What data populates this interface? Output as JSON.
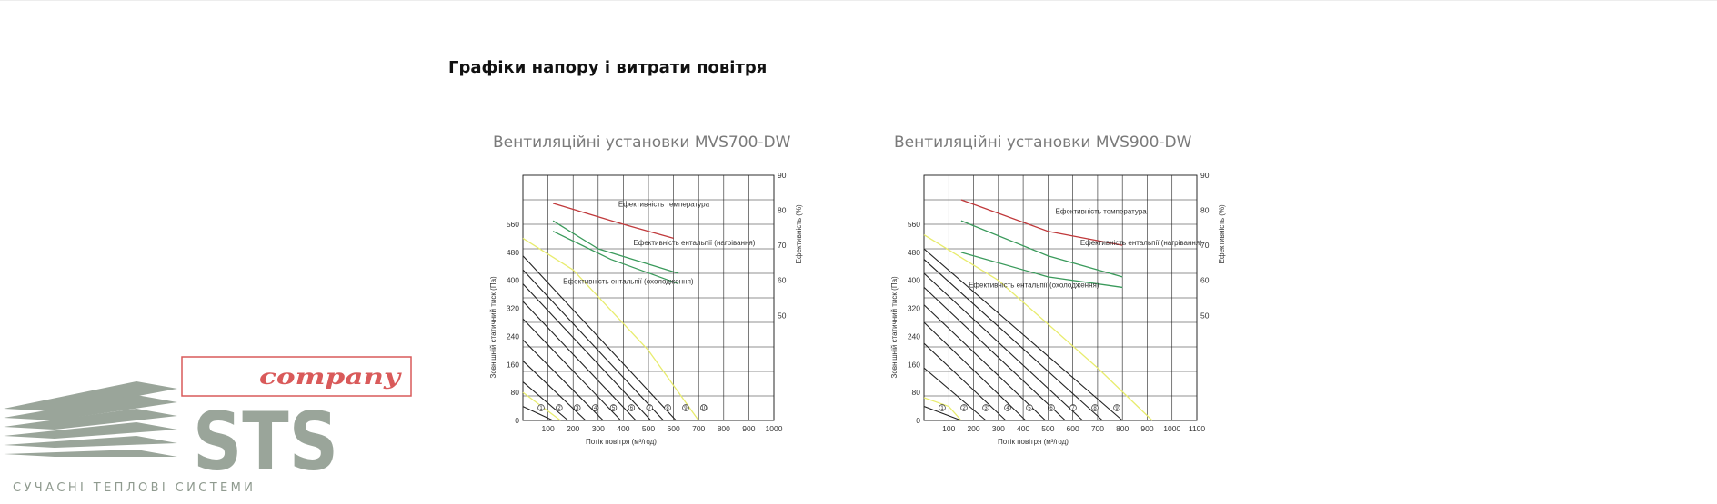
{
  "section": {
    "title": "Графіки напору і витрати повітря"
  },
  "chart_data": [
    {
      "type": "line",
      "title": "Вентиляційні установки MVS700-DW",
      "xlabel": "Потік повітря (м³/год)",
      "ylabel": "Зовнішній статичний тиск (Па)",
      "y2label": "Ефективність (%)",
      "xlim": [
        0,
        1000
      ],
      "x_ticks": [
        100,
        200,
        300,
        400,
        500,
        600,
        700,
        800,
        900,
        1000
      ],
      "ylim": [
        0,
        700
      ],
      "y_ticks": [
        0,
        80,
        160,
        240,
        320,
        400,
        480,
        560
      ],
      "y2lim": [
        20,
        90
      ],
      "y2_ticks": [
        50,
        60,
        70,
        80,
        90
      ],
      "grid": true,
      "markers": [
        "1",
        "2",
        "3",
        "4",
        "5",
        "6",
        "7",
        "8",
        "9",
        "10"
      ],
      "series": [
        {
          "name": "Ефективність температура",
          "axis": "right",
          "color": "#c0393b",
          "x": [
            120,
            400,
            600
          ],
          "y": [
            82,
            76,
            72
          ]
        },
        {
          "name": "Ефективність ентальпії (нагрівання)",
          "axis": "right",
          "color": "#3a9a5b",
          "x": [
            120,
            300,
            620
          ],
          "y": [
            77,
            69,
            62
          ]
        },
        {
          "name": "",
          "axis": "right",
          "color": "#3a9a5b",
          "x": [
            120,
            350,
            620
          ],
          "y": [
            74,
            66,
            59
          ]
        },
        {
          "name": "",
          "axis": "left",
          "color": "#e8ec6e",
          "x": [
            0,
            200,
            500,
            700
          ],
          "y": [
            520,
            430,
            200,
            0
          ]
        },
        {
          "name": "",
          "axis": "left",
          "color": "#e8ec6e",
          "x": [
            0,
            150
          ],
          "y": [
            80,
            0
          ]
        },
        {
          "name": "",
          "axis": "left",
          "color": "#222222",
          "x": [
            0,
            120
          ],
          "y": [
            40,
            0
          ]
        },
        {
          "name": "",
          "axis": "left",
          "color": "#222222",
          "x": [
            0,
            180
          ],
          "y": [
            110,
            0
          ]
        },
        {
          "name": "",
          "axis": "left",
          "color": "#222222",
          "x": [
            0,
            250
          ],
          "y": [
            170,
            0
          ]
        },
        {
          "name": "",
          "axis": "left",
          "color": "#222222",
          "x": [
            0,
            320
          ],
          "y": [
            230,
            0
          ]
        },
        {
          "name": "",
          "axis": "left",
          "color": "#222222",
          "x": [
            0,
            390
          ],
          "y": [
            290,
            0
          ]
        },
        {
          "name": "",
          "axis": "left",
          "color": "#222222",
          "x": [
            0,
            450
          ],
          "y": [
            340,
            0
          ]
        },
        {
          "name": "",
          "axis": "left",
          "color": "#222222",
          "x": [
            0,
            510
          ],
          "y": [
            390,
            0
          ]
        },
        {
          "name": "",
          "axis": "left",
          "color": "#222222",
          "x": [
            0,
            560
          ],
          "y": [
            430,
            0
          ]
        },
        {
          "name": "",
          "axis": "left",
          "color": "#222222",
          "x": [
            0,
            610
          ],
          "y": [
            470,
            0
          ]
        }
      ],
      "annotations": [
        {
          "text": "Ефективність температура",
          "x": 380,
          "y": 81
        },
        {
          "text": "Ефективність ентальпії (нагрівання)",
          "x": 440,
          "y": 70
        },
        {
          "text": "Ефективність ентальпії (охолодження)",
          "x": 160,
          "y": 59
        }
      ]
    },
    {
      "type": "line",
      "title": "Вентиляційні установки MVS900-DW",
      "xlabel": "Потік повітря (м³/год)",
      "ylabel": "Зовнішній статичний тиск (Па)",
      "y2label": "Ефективність (%)",
      "xlim": [
        0,
        1100
      ],
      "x_ticks": [
        100,
        200,
        300,
        400,
        500,
        600,
        700,
        800,
        900,
        1000,
        1100
      ],
      "ylim": [
        0,
        700
      ],
      "y_ticks": [
        0,
        80,
        160,
        240,
        320,
        400,
        480,
        560
      ],
      "y2lim": [
        20,
        90
      ],
      "y2_ticks": [
        50,
        60,
        70,
        80,
        90
      ],
      "grid": true,
      "markers": [
        "1",
        "2",
        "3",
        "4",
        "5",
        "6",
        "7",
        "8",
        "9"
      ],
      "series": [
        {
          "name": "Ефективність температура",
          "axis": "right",
          "color": "#c0393b",
          "x": [
            150,
            500,
            800
          ],
          "y": [
            83,
            74,
            70
          ]
        },
        {
          "name": "Ефективність ентальпії (нагрівання)",
          "axis": "right",
          "color": "#3a9a5b",
          "x": [
            150,
            500,
            800
          ],
          "y": [
            77,
            67,
            61
          ]
        },
        {
          "name": "",
          "axis": "right",
          "color": "#3a9a5b",
          "x": [
            150,
            500,
            800
          ],
          "y": [
            68,
            61,
            58
          ]
        },
        {
          "name": "",
          "axis": "left",
          "color": "#e8ec6e",
          "x": [
            0,
            300,
            700,
            920
          ],
          "y": [
            530,
            400,
            150,
            0
          ]
        },
        {
          "name": "",
          "axis": "left",
          "color": "#e8ec6e",
          "x": [
            0,
            100,
            150
          ],
          "y": [
            65,
            40,
            0
          ]
        },
        {
          "name": "",
          "axis": "left",
          "color": "#222222",
          "x": [
            0,
            150
          ],
          "y": [
            40,
            0
          ]
        },
        {
          "name": "",
          "axis": "left",
          "color": "#222222",
          "x": [
            0,
            250
          ],
          "y": [
            150,
            0
          ]
        },
        {
          "name": "",
          "axis": "left",
          "color": "#222222",
          "x": [
            0,
            330
          ],
          "y": [
            220,
            0
          ]
        },
        {
          "name": "",
          "axis": "left",
          "color": "#222222",
          "x": [
            0,
            410
          ],
          "y": [
            280,
            0
          ]
        },
        {
          "name": "",
          "axis": "left",
          "color": "#222222",
          "x": [
            0,
            490
          ],
          "y": [
            330,
            0
          ]
        },
        {
          "name": "",
          "axis": "left",
          "color": "#222222",
          "x": [
            0,
            570
          ],
          "y": [
            380,
            0
          ]
        },
        {
          "name": "",
          "axis": "left",
          "color": "#222222",
          "x": [
            0,
            640
          ],
          "y": [
            420,
            0
          ]
        },
        {
          "name": "",
          "axis": "left",
          "color": "#222222",
          "x": [
            0,
            720
          ],
          "y": [
            460,
            0
          ]
        },
        {
          "name": "",
          "axis": "left",
          "color": "#222222",
          "x": [
            0,
            800
          ],
          "y": [
            490,
            0
          ]
        }
      ],
      "annotations": [
        {
          "text": "Ефективність температура",
          "x": 530,
          "y": 79
        },
        {
          "text": "Ефективність ентальпії (нагрівання)",
          "x": 630,
          "y": 70
        },
        {
          "text": "Ефективність ентальпії (охолодження)",
          "x": 180,
          "y": 58
        }
      ]
    }
  ],
  "logo": {
    "word_main": "STS",
    "word_script": "company",
    "tagline": "СУЧАСНІ ТЕПЛОВІ СИСТЕМИ",
    "colors": {
      "gray": "#9aa59a",
      "red": "#d95a5a",
      "tagline": "#8f9a8f"
    }
  }
}
